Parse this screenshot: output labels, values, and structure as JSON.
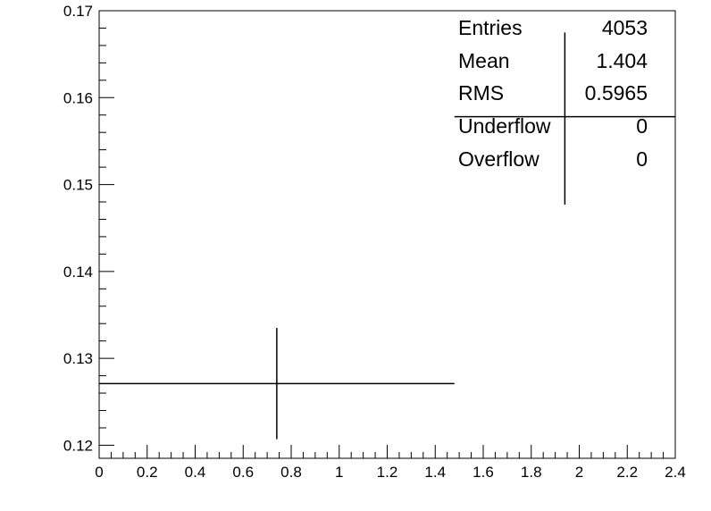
{
  "chart_data": {
    "type": "scatter",
    "title": "",
    "xlabel": "",
    "ylabel": "",
    "xlim": [
      0,
      2.4
    ],
    "ylim": [
      0.1185,
      0.17
    ],
    "x_ticks": [
      "0",
      "0.2",
      "0.4",
      "0.6",
      "0.8",
      "1",
      "1.2",
      "1.4",
      "1.6",
      "1.8",
      "2",
      "2.2",
      "2.4"
    ],
    "y_ticks": [
      "0.12",
      "0.13",
      "0.14",
      "0.15",
      "0.16",
      "0.17"
    ],
    "grid": false,
    "legend": "none",
    "points": [
      {
        "x": 0.74,
        "y": 0.1271,
        "x_low": 0.0,
        "x_high": 1.48,
        "y_low": 0.1207,
        "y_high": 0.1335
      },
      {
        "x": 1.94,
        "y": 0.1578,
        "x_low": 1.48,
        "y_high": 0.1675,
        "y_low": 0.1477,
        "x_high": 2.4
      }
    ],
    "stats_box": {
      "position": "top-right",
      "rows": [
        {
          "label": "Entries",
          "value": "4053"
        },
        {
          "label": "Mean",
          "value": "1.404"
        },
        {
          "label": "RMS",
          "value": "0.5965"
        },
        {
          "label": "Underflow",
          "value": "0"
        },
        {
          "label": "Overflow",
          "value": "0"
        }
      ]
    }
  }
}
